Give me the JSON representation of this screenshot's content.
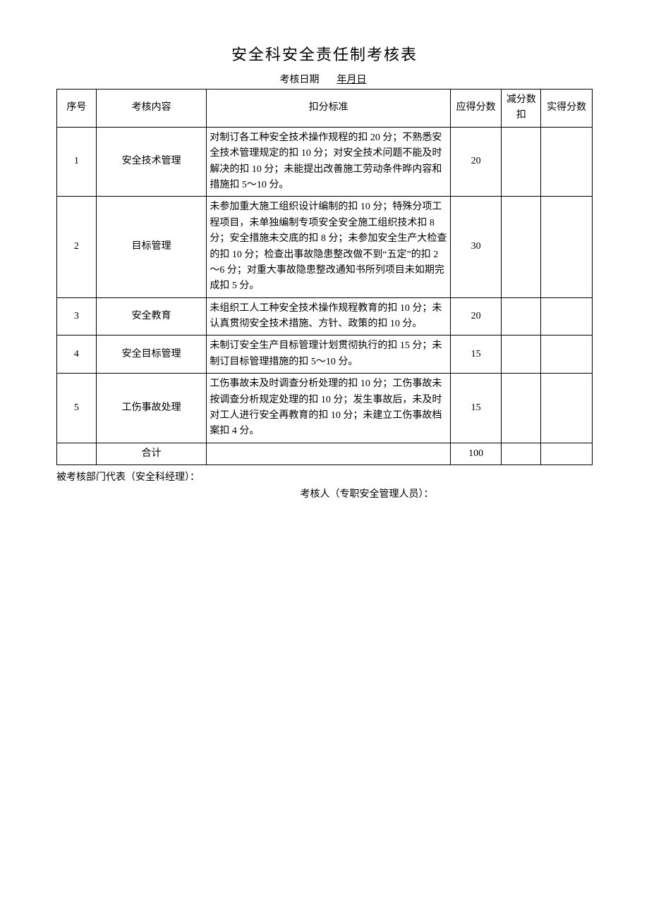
{
  "title": "安全科安全责任制考核表",
  "date_label": "考核日期",
  "date_value": "年月日",
  "columns": {
    "seq": "序号",
    "item": "考核内容",
    "criteria": "扣分标准",
    "score": "应得分数",
    "deduct": "减分数扣",
    "actual": "实得分数"
  },
  "rows": [
    {
      "seq": "1",
      "item": "安全技术管理",
      "criteria": "对制订各工种安全技术操作规程的扣 20 分；不熟悉安全技术管理规定的扣 10 分；对安全技术问题不能及时解决的扣 10 分；未能提出改善施工劳动条件晔内容和措施扣 5～10 分。",
      "score": "20",
      "deduct": "",
      "actual": ""
    },
    {
      "seq": "2",
      "item": "目标管理",
      "criteria": "未参加重大施工组织设计编制的扣 10 分；特殊分项工程项目，未单独编制专项安全安全施工组织技术扣 8 分；安全措施未交底的扣 8 分；未参加安全生产大检查的扣 10 分；检查出事故隐患整改做不到“五定”的扣 2～6 分；对重大事故隐患整改通知书所列项目未如期完成扣 5 分。",
      "score": "30",
      "deduct": "",
      "actual": ""
    },
    {
      "seq": "3",
      "item": "安全教育",
      "criteria": "未组织工人工种安全技术操作规程教育的扣 10 分；未认真贯彻安全技术措施、方针、政策的扣 10 分。",
      "score": "20",
      "deduct": "",
      "actual": ""
    },
    {
      "seq": "4",
      "item": "安全目标管理",
      "criteria": "未制订安全生产目标管理计划贯彻执行的扣 15 分；未制订目标管理措施的扣 5～10 分。",
      "score": "15",
      "deduct": "",
      "actual": ""
    },
    {
      "seq": "5",
      "item": "工伤事故处理",
      "criteria": "工伤事故未及时调查分析处理的扣 10 分；工伤事故未按调查分析规定处理的扣 10 分；发生事故后，未及时对工人进行安全再教育的扣 10 分；未建立工伤事故档案扣 4 分。",
      "score": "15",
      "deduct": "",
      "actual": ""
    }
  ],
  "total": {
    "label": "合计",
    "score": "100",
    "deduct": "",
    "actual": ""
  },
  "footer1": "被考核部门代表（安全科经理）：",
  "footer2": "考核人（专职安全管理人员）："
}
